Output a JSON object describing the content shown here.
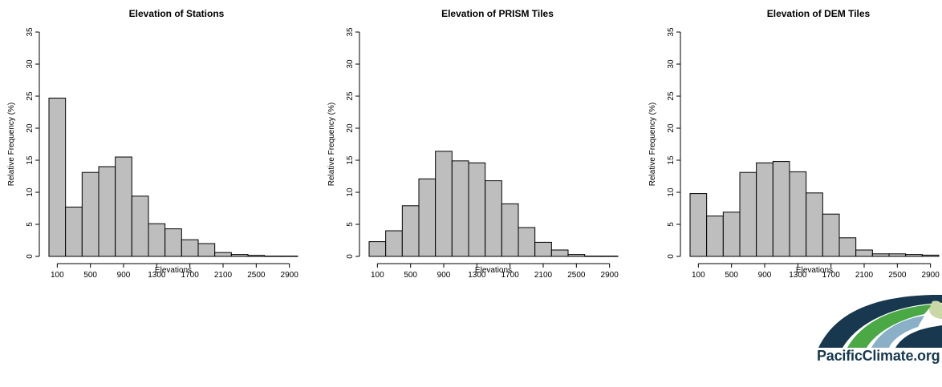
{
  "chart_data": [
    {
      "type": "bar",
      "title": "Elevation of Stations",
      "xlabel": "Elevations",
      "ylabel": "Relative Frequency (%)",
      "bin_edges": [
        0,
        200,
        400,
        600,
        800,
        1000,
        1200,
        1400,
        1600,
        1800,
        2000,
        2200,
        2400,
        2600,
        2800,
        3000
      ],
      "values": [
        24.7,
        7.7,
        13.1,
        14.0,
        15.5,
        9.4,
        5.1,
        4.3,
        2.6,
        2.0,
        0.6,
        0.3,
        0.15,
        0.05,
        0.05
      ],
      "xticks": [
        "100",
        "500",
        "900",
        "1300",
        "1700",
        "2100",
        "2500",
        "2900"
      ],
      "yticks": [
        "0",
        "5",
        "10",
        "15",
        "20",
        "25",
        "30",
        "35"
      ],
      "ylim": [
        0,
        35
      ],
      "grid": false
    },
    {
      "type": "bar",
      "title": "Elevation of PRISM Tiles",
      "xlabel": "Elevations",
      "ylabel": "Relative Frequency (%)",
      "bin_edges": [
        0,
        200,
        400,
        600,
        800,
        1000,
        1200,
        1400,
        1600,
        1800,
        2000,
        2200,
        2400,
        2600,
        2800,
        3000
      ],
      "values": [
        2.3,
        4.0,
        7.9,
        12.1,
        16.4,
        14.9,
        14.6,
        11.8,
        8.2,
        4.5,
        2.2,
        1.0,
        0.3,
        0.05,
        0.05
      ],
      "xticks": [
        "100",
        "500",
        "900",
        "1300",
        "1700",
        "2100",
        "2500",
        "2900"
      ],
      "yticks": [
        "0",
        "5",
        "10",
        "15",
        "20",
        "25",
        "30",
        "35"
      ],
      "ylim": [
        0,
        35
      ],
      "grid": false
    },
    {
      "type": "bar",
      "title": "Elevation of DEM Tiles",
      "xlabel": "Elevations",
      "ylabel": "Relative Frequency (%)",
      "bin_edges": [
        0,
        200,
        400,
        600,
        800,
        1000,
        1200,
        1400,
        1600,
        1800,
        2000,
        2200,
        2400,
        2600,
        2800,
        3000
      ],
      "values": [
        9.8,
        6.3,
        6.9,
        13.1,
        14.6,
        14.8,
        13.2,
        9.9,
        6.6,
        2.9,
        1.0,
        0.4,
        0.4,
        0.3,
        0.2
      ],
      "xticks": [
        "100",
        "500",
        "900",
        "1300",
        "1700",
        "2100",
        "2500",
        "2900"
      ],
      "yticks": [
        "0",
        "5",
        "10",
        "15",
        "20",
        "25",
        "30",
        "35"
      ],
      "ylim": [
        0,
        35
      ],
      "grid": false
    }
  ],
  "logo": {
    "text": "PacificClimate.org"
  },
  "colors": {
    "bar_fill": "#bebebe",
    "bar_stroke": "#000000",
    "logo_navy": "#17384e",
    "logo_green": "#4aa845",
    "logo_blue": "#8ab0c8"
  }
}
